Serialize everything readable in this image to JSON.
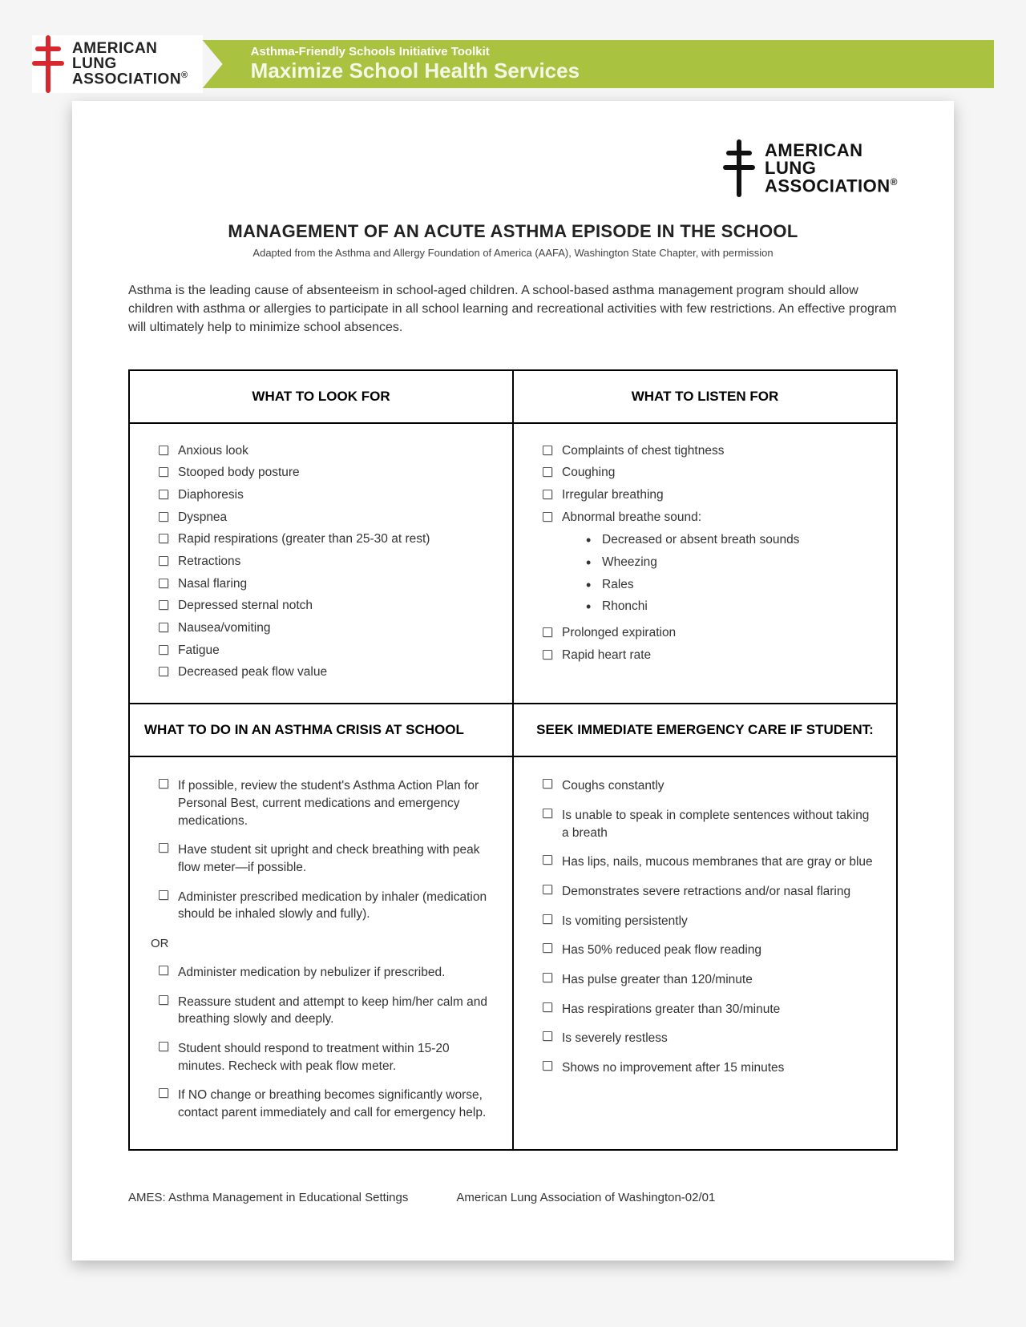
{
  "colors": {
    "banner_bg": "#a9c23f",
    "cross_red": "#d7282f",
    "text_dark": "#222222",
    "border": "#000000"
  },
  "logo": {
    "line1": "AMERICAN",
    "line2": "LUNG",
    "line3": "ASSOCIATION",
    "reg": "®"
  },
  "banner": {
    "small": "Asthma-Friendly Schools Initiative Toolkit",
    "big": "Maximize School Health Services"
  },
  "title": "MANAGEMENT OF AN ACUTE ASTHMA EPISODE IN THE SCHOOL",
  "subtitle": "Adapted from the Asthma and Allergy Foundation of America (AAFA), Washington State Chapter, with permission",
  "intro": "Asthma is the leading cause of absenteeism in school-aged children. A school-based asthma management program should allow children with asthma or allergies to participate in all school learning and recreational activities with few restrictions. An effective program will ultimately help to minimize school absences.",
  "headers": {
    "look": "WHAT TO LOOK FOR",
    "listen": "WHAT TO LISTEN FOR",
    "crisis": "WHAT TO DO IN AN ASTHMA CRISIS AT SCHOOL",
    "emergency": "SEEK IMMEDIATE EMERGENCY CARE IF STUDENT:"
  },
  "look_items": [
    "Anxious look",
    "Stooped body posture",
    "Diaphoresis",
    "Dyspnea",
    "Rapid respirations (greater than 25-30 at rest)",
    "Retractions",
    "Nasal flaring",
    "Depressed sternal notch",
    "Nausea/vomiting",
    "Fatigue",
    "Decreased peak flow value"
  ],
  "listen_items_pre": [
    "Complaints of chest tightness",
    "Coughing",
    "Irregular breathing",
    "Abnormal breathe sound:"
  ],
  "listen_sub": [
    "Decreased or absent breath sounds",
    "Wheezing",
    "Rales",
    "Rhonchi"
  ],
  "listen_items_post": [
    "Prolonged expiration",
    "Rapid heart rate"
  ],
  "crisis_items": [
    "If possible, review the student's Asthma Action Plan for Personal Best, current medications and emergency medications.",
    "Have student sit upright and check breathing with peak flow meter—if possible.",
    "Administer prescribed medication by inhaler (medication should be inhaled slowly and fully)."
  ],
  "crisis_or": "OR",
  "crisis_items2": [
    "Administer medication by nebulizer if prescribed.",
    "Reassure student and attempt to keep him/her calm and breathing slowly and deeply.",
    "Student should respond to treatment within 15-20 minutes. Recheck with peak flow meter.",
    "If NO change or breathing becomes significantly worse, contact parent immediately and call for emergency help."
  ],
  "emergency_items": [
    "Coughs constantly",
    "Is unable to speak in complete sentences without taking a breath",
    "Has lips, nails, mucous membranes that are gray or blue",
    "Demonstrates severe retractions and/or nasal flaring",
    "Is vomiting persistently",
    "Has 50% reduced peak flow reading",
    "Has pulse greater than 120/minute",
    "Has respirations greater than 30/minute",
    "Is severely restless",
    "Shows no improvement after 15 minutes"
  ],
  "footer": {
    "left": "AMES: Asthma Management in Educational Settings",
    "right": "American Lung Association of Washington-02/01"
  }
}
